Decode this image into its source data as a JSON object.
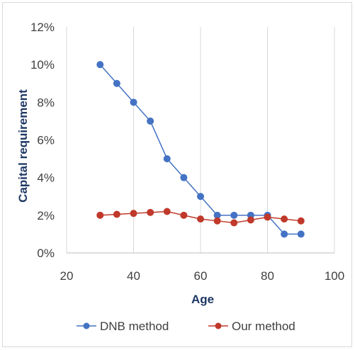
{
  "chart_data": {
    "type": "line",
    "xlabel": "Age",
    "ylabel": "Capital requirement",
    "xlim": [
      20,
      100
    ],
    "ylim": [
      0,
      0.12
    ],
    "x_ticks": [
      "20",
      "40",
      "60",
      "80",
      "100"
    ],
    "y_ticks": [
      "0%",
      "2%",
      "4%",
      "6%",
      "8%",
      "10%",
      "12%"
    ],
    "grid": "vertical",
    "legend_position": "bottom",
    "series": [
      {
        "name": "DNB method",
        "color": "#4472c4",
        "x": [
          30,
          35,
          40,
          45,
          50,
          55,
          60,
          65,
          70,
          75,
          80,
          85,
          90
        ],
        "y": [
          0.1,
          0.09,
          0.08,
          0.07,
          0.05,
          0.04,
          0.03,
          0.02,
          0.02,
          0.02,
          0.02,
          0.01,
          0.01
        ]
      },
      {
        "name": "Our method",
        "color": "#c0392b",
        "x": [
          30,
          35,
          40,
          45,
          50,
          55,
          60,
          65,
          70,
          75,
          80,
          85,
          90
        ],
        "y": [
          0.02,
          0.0205,
          0.021,
          0.0215,
          0.022,
          0.02,
          0.018,
          0.017,
          0.016,
          0.0175,
          0.019,
          0.018,
          0.017
        ]
      }
    ]
  }
}
